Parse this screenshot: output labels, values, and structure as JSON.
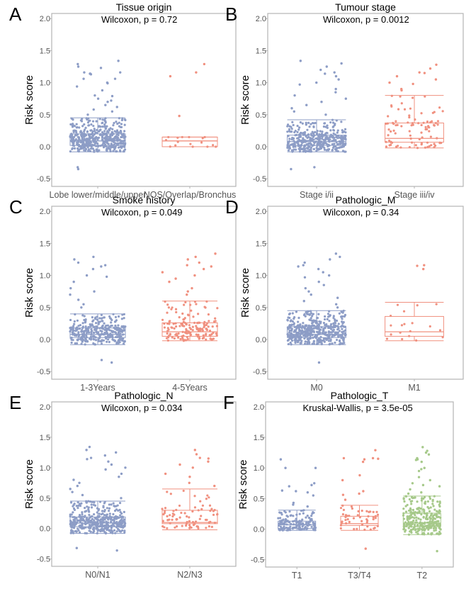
{
  "chart_data": {
    "type": "box",
    "ylabel": "Risk score",
    "ylim": [
      -0.62,
      2.08
    ],
    "yticks": [
      "-0.5",
      "0.0",
      "0.5",
      "1.0",
      "1.5",
      "2.0"
    ],
    "ytick_values": [
      -0.5,
      0,
      0.5,
      1.0,
      1.5,
      2.0
    ],
    "colors": [
      "#8d9dc6",
      "#f0907f",
      "#a6c98a"
    ],
    "panels": [
      {
        "letter": "A",
        "title": "Tissue origin",
        "test": "Wilcoxon, p = 0.72",
        "groups": [
          {
            "label": "Lobe lower/middle/upper",
            "n": 480,
            "lo": -0.08,
            "q1": 0.02,
            "median": 0.09,
            "q3": 0.2,
            "hi": 0.45,
            "outliers": [
              1.34,
              1.29,
              1.25,
              1.23,
              1.16,
              1.16,
              1.14,
              1.14,
              1.13,
              1.06,
              1.06,
              1.0,
              0.99,
              0.94,
              0.88,
              0.8,
              0.79,
              0.75,
              0.72,
              0.7,
              0.65,
              0.62,
              0.58,
              0.55,
              0.5,
              -0.35,
              -0.32
            ]
          },
          {
            "label": "NOS/Overlap/Bronchus",
            "n": 20,
            "lo": 0.0,
            "q1": 0.0,
            "median": 0.09,
            "q3": 0.15,
            "hi": 0.15,
            "outliers": [
              1.29,
              1.16,
              1.1,
              0.48
            ]
          }
        ]
      },
      {
        "letter": "B",
        "title": "Tumour stage",
        "test": "Wilcoxon, p = 0.0012",
        "groups": [
          {
            "label": "Stage i/ii",
            "n": 400,
            "lo": -0.08,
            "q1": 0.02,
            "median": 0.08,
            "q3": 0.18,
            "hi": 0.42,
            "outliers": [
              1.34,
              1.3,
              1.25,
              1.2,
              1.16,
              1.14,
              1.1,
              1.05,
              1.0,
              0.97,
              0.9,
              0.85,
              0.8,
              0.75,
              0.7,
              0.65,
              0.6,
              0.55,
              0.5,
              -0.35,
              -0.32
            ]
          },
          {
            "label": "Stage iii/iv",
            "n": 100,
            "lo": -0.02,
            "q1": 0.07,
            "median": 0.13,
            "q3": 0.37,
            "hi": 0.8,
            "outliers": [
              1.28,
              1.22,
              1.16,
              1.15,
              1.1,
              1.05,
              1.0,
              0.98,
              0.9,
              0.88
            ]
          }
        ]
      },
      {
        "letter": "C",
        "title": "Smoke history",
        "test": "Wilcoxon, p = 0.049",
        "groups": [
          {
            "label": "1-3Years",
            "n": 330,
            "lo": -0.08,
            "q1": 0.03,
            "median": 0.08,
            "q3": 0.18,
            "hi": 0.4,
            "outliers": [
              1.29,
              1.25,
              1.2,
              1.16,
              1.14,
              1.1,
              1.0,
              0.98,
              0.9,
              0.8,
              0.75,
              0.7,
              0.62,
              0.55,
              0.5,
              -0.32,
              -0.36
            ]
          },
          {
            "label": "4-5Years",
            "n": 170,
            "lo": -0.02,
            "q1": 0.05,
            "median": 0.12,
            "q3": 0.26,
            "hi": 0.6,
            "outliers": [
              1.34,
              1.29,
              1.25,
              1.2,
              1.16,
              1.14,
              1.1,
              1.05,
              1.0,
              0.95,
              0.9,
              0.8,
              0.75,
              0.7
            ]
          }
        ]
      },
      {
        "letter": "D",
        "title": "Pathologic_M",
        "test": "Wilcoxon, p = 0.34",
        "groups": [
          {
            "label": "M0",
            "n": 460,
            "lo": -0.08,
            "q1": 0.03,
            "median": 0.08,
            "q3": 0.2,
            "hi": 0.45,
            "outliers": [
              1.34,
              1.29,
              1.25,
              1.2,
              1.16,
              1.14,
              1.1,
              1.05,
              1.0,
              0.97,
              0.9,
              0.85,
              0.8,
              0.75,
              0.7,
              0.65,
              0.6,
              0.55,
              0.5,
              -0.36
            ]
          },
          {
            "label": "M1",
            "n": 22,
            "lo": -0.02,
            "q1": 0.05,
            "median": 0.12,
            "q3": 0.36,
            "hi": 0.58,
            "outliers": [
              1.16,
              1.15,
              1.1
            ]
          }
        ]
      },
      {
        "letter": "E",
        "title": "Pathologic_N",
        "test": "Wilcoxon, p = 0.034",
        "groups": [
          {
            "label": "N0/N1",
            "n": 420,
            "lo": -0.08,
            "q1": 0.03,
            "median": 0.09,
            "q3": 0.19,
            "hi": 0.45,
            "outliers": [
              1.34,
              1.29,
              1.25,
              1.2,
              1.16,
              1.14,
              1.1,
              1.05,
              1.0,
              0.97,
              0.9,
              0.85,
              0.8,
              0.75,
              0.7,
              0.65,
              0.6,
              0.55,
              0.5,
              -0.32,
              -0.36
            ]
          },
          {
            "label": "N2/N3",
            "n": 90,
            "lo": -0.02,
            "q1": 0.08,
            "median": 0.1,
            "q3": 0.3,
            "hi": 0.65,
            "outliers": [
              1.29,
              1.22,
              1.16,
              1.15,
              1.1,
              1.05,
              1.0,
              0.9,
              0.85,
              0.75,
              0.7
            ]
          }
        ]
      },
      {
        "letter": "F",
        "title": "Pathologic_T",
        "test": "Kruskal-Wallis, p = 3.5e-05",
        "groups": [
          {
            "label": "T1",
            "n": 160,
            "lo": -0.02,
            "q1": 0.01,
            "median": 0.07,
            "q3": 0.13,
            "hi": 0.31,
            "outliers": [
              1.14,
              1.0,
              1.0,
              0.75,
              0.72,
              0.7,
              0.63,
              0.62,
              0.6,
              0.55,
              0.43,
              0.4,
              0.37
            ]
          },
          {
            "label": "T3/T4",
            "n": 60,
            "lo": -0.02,
            "q1": 0.06,
            "median": 0.09,
            "q3": 0.21,
            "hi": 0.39,
            "outliers": [
              1.29,
              1.16,
              1.16,
              1.15,
              1.14,
              1.1,
              0.88,
              0.8,
              0.62,
              0.58,
              0.56,
              0.48,
              -0.32
            ]
          },
          {
            "label": "T2",
            "n": 300,
            "lo": -0.09,
            "q1": 0.04,
            "median": 0.1,
            "q3": 0.26,
            "hi": 0.54,
            "outliers": [
              1.34,
              1.28,
              1.25,
              1.22,
              1.16,
              1.14,
              1.13,
              1.1,
              1.0,
              0.98,
              0.95,
              0.85,
              0.8,
              0.75,
              0.72,
              0.7,
              0.65,
              0.6,
              0.58,
              -0.36
            ]
          }
        ]
      }
    ]
  }
}
